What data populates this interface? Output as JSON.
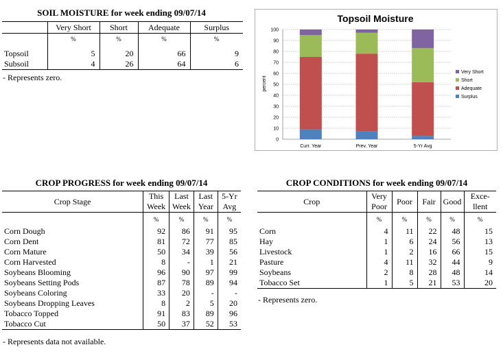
{
  "soil_moisture": {
    "title": "SOIL MOISTURE for week ending 09/07/14",
    "columns": [
      "Very Short",
      "Short",
      "Adequate",
      "Surplus"
    ],
    "units": [
      "%",
      "%",
      "%",
      "%"
    ],
    "rows": [
      {
        "label": "Topsoil",
        "values": [
          "5",
          "20",
          "66",
          "9"
        ]
      },
      {
        "label": "Subsoil",
        "values": [
          "4",
          "26",
          "64",
          "6"
        ]
      }
    ],
    "note": "- Represents zero."
  },
  "crop_progress": {
    "title": "CROP PROGRESS for week ending 09/07/14",
    "stage_header": "Crop Stage",
    "columns": [
      {
        "line1": "This",
        "line2": "Week"
      },
      {
        "line1": "Last",
        "line2": "Week"
      },
      {
        "line1": "Last",
        "line2": "Year"
      },
      {
        "line1": "5-Yr",
        "line2": "Avg"
      }
    ],
    "units": [
      "%",
      "%",
      "%",
      "%"
    ],
    "rows": [
      {
        "label": "Corn Dough",
        "values": [
          "92",
          "86",
          "91",
          "95"
        ]
      },
      {
        "label": "Corn Dent",
        "values": [
          "81",
          "72",
          "77",
          "85"
        ]
      },
      {
        "label": "Corn Mature",
        "values": [
          "50",
          "34",
          "39",
          "56"
        ]
      },
      {
        "label": "Corn Harvested",
        "values": [
          "8",
          "-",
          "1",
          "21"
        ]
      },
      {
        "label": "Soybeans Blooming",
        "values": [
          "96",
          "90",
          "97",
          "99"
        ]
      },
      {
        "label": "Soybeans Setting Pods",
        "values": [
          "87",
          "78",
          "89",
          "94"
        ]
      },
      {
        "label": "Soybeans Coloring",
        "values": [
          "33",
          "20",
          "-",
          "-"
        ]
      },
      {
        "label": "Soybeans Dropping Leaves",
        "values": [
          "8",
          "2",
          "5",
          "20"
        ]
      },
      {
        "label": "Tobacco Topped",
        "values": [
          "91",
          "83",
          "89",
          "96"
        ]
      },
      {
        "label": "Tobacco Cut",
        "values": [
          "50",
          "37",
          "52",
          "53"
        ]
      }
    ],
    "note": "- Represents data not available."
  },
  "crop_conditions": {
    "title": "CROP CONDITIONS for week ending 09/07/14",
    "crop_header": "Crop",
    "columns": [
      {
        "line1": "Very",
        "line2": "Poor"
      },
      {
        "line1": "Poor",
        "line2": ""
      },
      {
        "line1": "Fair",
        "line2": ""
      },
      {
        "line1": "Good",
        "line2": ""
      },
      {
        "line1": "Exce-",
        "line2": "llent"
      }
    ],
    "units": [
      "%",
      "%",
      "%",
      "%",
      "%"
    ],
    "rows": [
      {
        "label": "Corn",
        "values": [
          "4",
          "11",
          "22",
          "48",
          "15"
        ]
      },
      {
        "label": "Hay",
        "values": [
          "1",
          "6",
          "24",
          "56",
          "13"
        ]
      },
      {
        "label": "Livestock",
        "values": [
          "1",
          "2",
          "16",
          "66",
          "15"
        ]
      },
      {
        "label": "Pasture",
        "values": [
          "4",
          "11",
          "32",
          "44",
          "9"
        ]
      },
      {
        "label": "Soybeans",
        "values": [
          "2",
          "8",
          "28",
          "48",
          "14"
        ]
      },
      {
        "label": "Tobacco Set",
        "values": [
          "1",
          "5",
          "21",
          "53",
          "20"
        ]
      }
    ],
    "note": "- Represents zero."
  },
  "chart_data": {
    "type": "bar",
    "stacked": true,
    "title": "Topsoil Moisture",
    "ylabel": "percent",
    "xlabel": "",
    "ylim": [
      0,
      100
    ],
    "yticks": [
      0,
      10,
      20,
      30,
      40,
      50,
      60,
      70,
      80,
      90,
      100
    ],
    "categories": [
      "Curr. Year",
      "Prev. Year",
      "5-Yr Avg"
    ],
    "series": [
      {
        "name": "Surplus",
        "color": "#4f81bd",
        "values": [
          9,
          7,
          3
        ]
      },
      {
        "name": "Adequate",
        "color": "#c0504d",
        "values": [
          66,
          71,
          49
        ]
      },
      {
        "name": "Short",
        "color": "#9bbb59",
        "values": [
          20,
          19,
          31
        ]
      },
      {
        "name": "Very Short",
        "color": "#8064a2",
        "values": [
          5,
          3,
          17
        ]
      }
    ],
    "legend_order": [
      "Very Short",
      "Short",
      "Adequate",
      "Surplus"
    ],
    "legend_position": "right",
    "grid": true
  }
}
